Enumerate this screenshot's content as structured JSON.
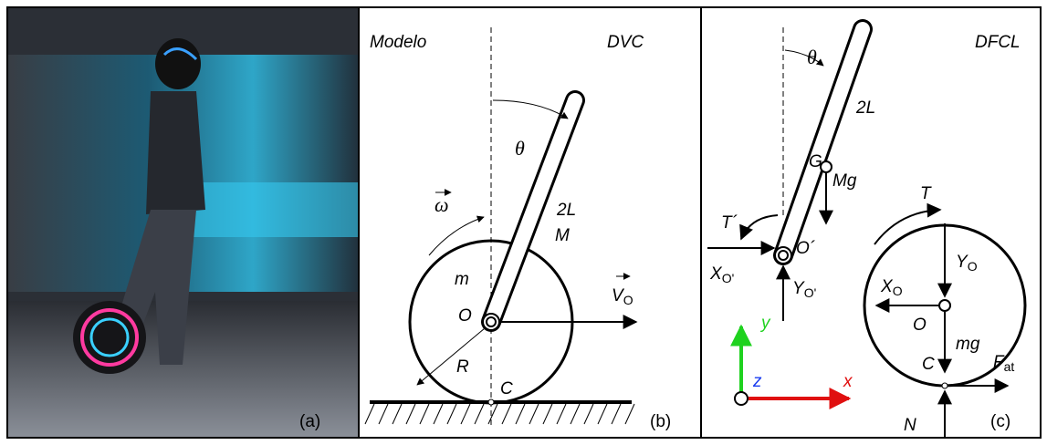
{
  "panel_a": {
    "label": "(a)"
  },
  "panel_b": {
    "title": "Modelo",
    "subtitle": "DVC",
    "theta": "θ",
    "omega": "ω",
    "rod_length": "2L",
    "rod_mass": "M",
    "wheel_mass": "m",
    "center": "O",
    "velocity": "V",
    "velocity_sub": "O",
    "radius": "R",
    "contact": "C",
    "label": "(b)"
  },
  "panel_c": {
    "title": "DFCL",
    "theta": "θ",
    "rod_length": "2L",
    "rod_cg": "G",
    "rod_weight": "Mg",
    "torque_rod": "T´",
    "pivot": "O´",
    "reaction_x": "X",
    "reaction_x_sub": "O'",
    "reaction_y": "Y",
    "reaction_y_sub": "O'",
    "torque_wheel": "T",
    "wheel_y": "Y",
    "wheel_y_sub": "O",
    "wheel_x": "X",
    "wheel_x_sub": "O",
    "center": "O",
    "wheel_weight": "mg",
    "axis_y": "y",
    "axis_z": "z",
    "axis_x": "x",
    "contact": "C",
    "friction": "F",
    "friction_sub": "at",
    "normal": "N",
    "label": "(c)"
  }
}
